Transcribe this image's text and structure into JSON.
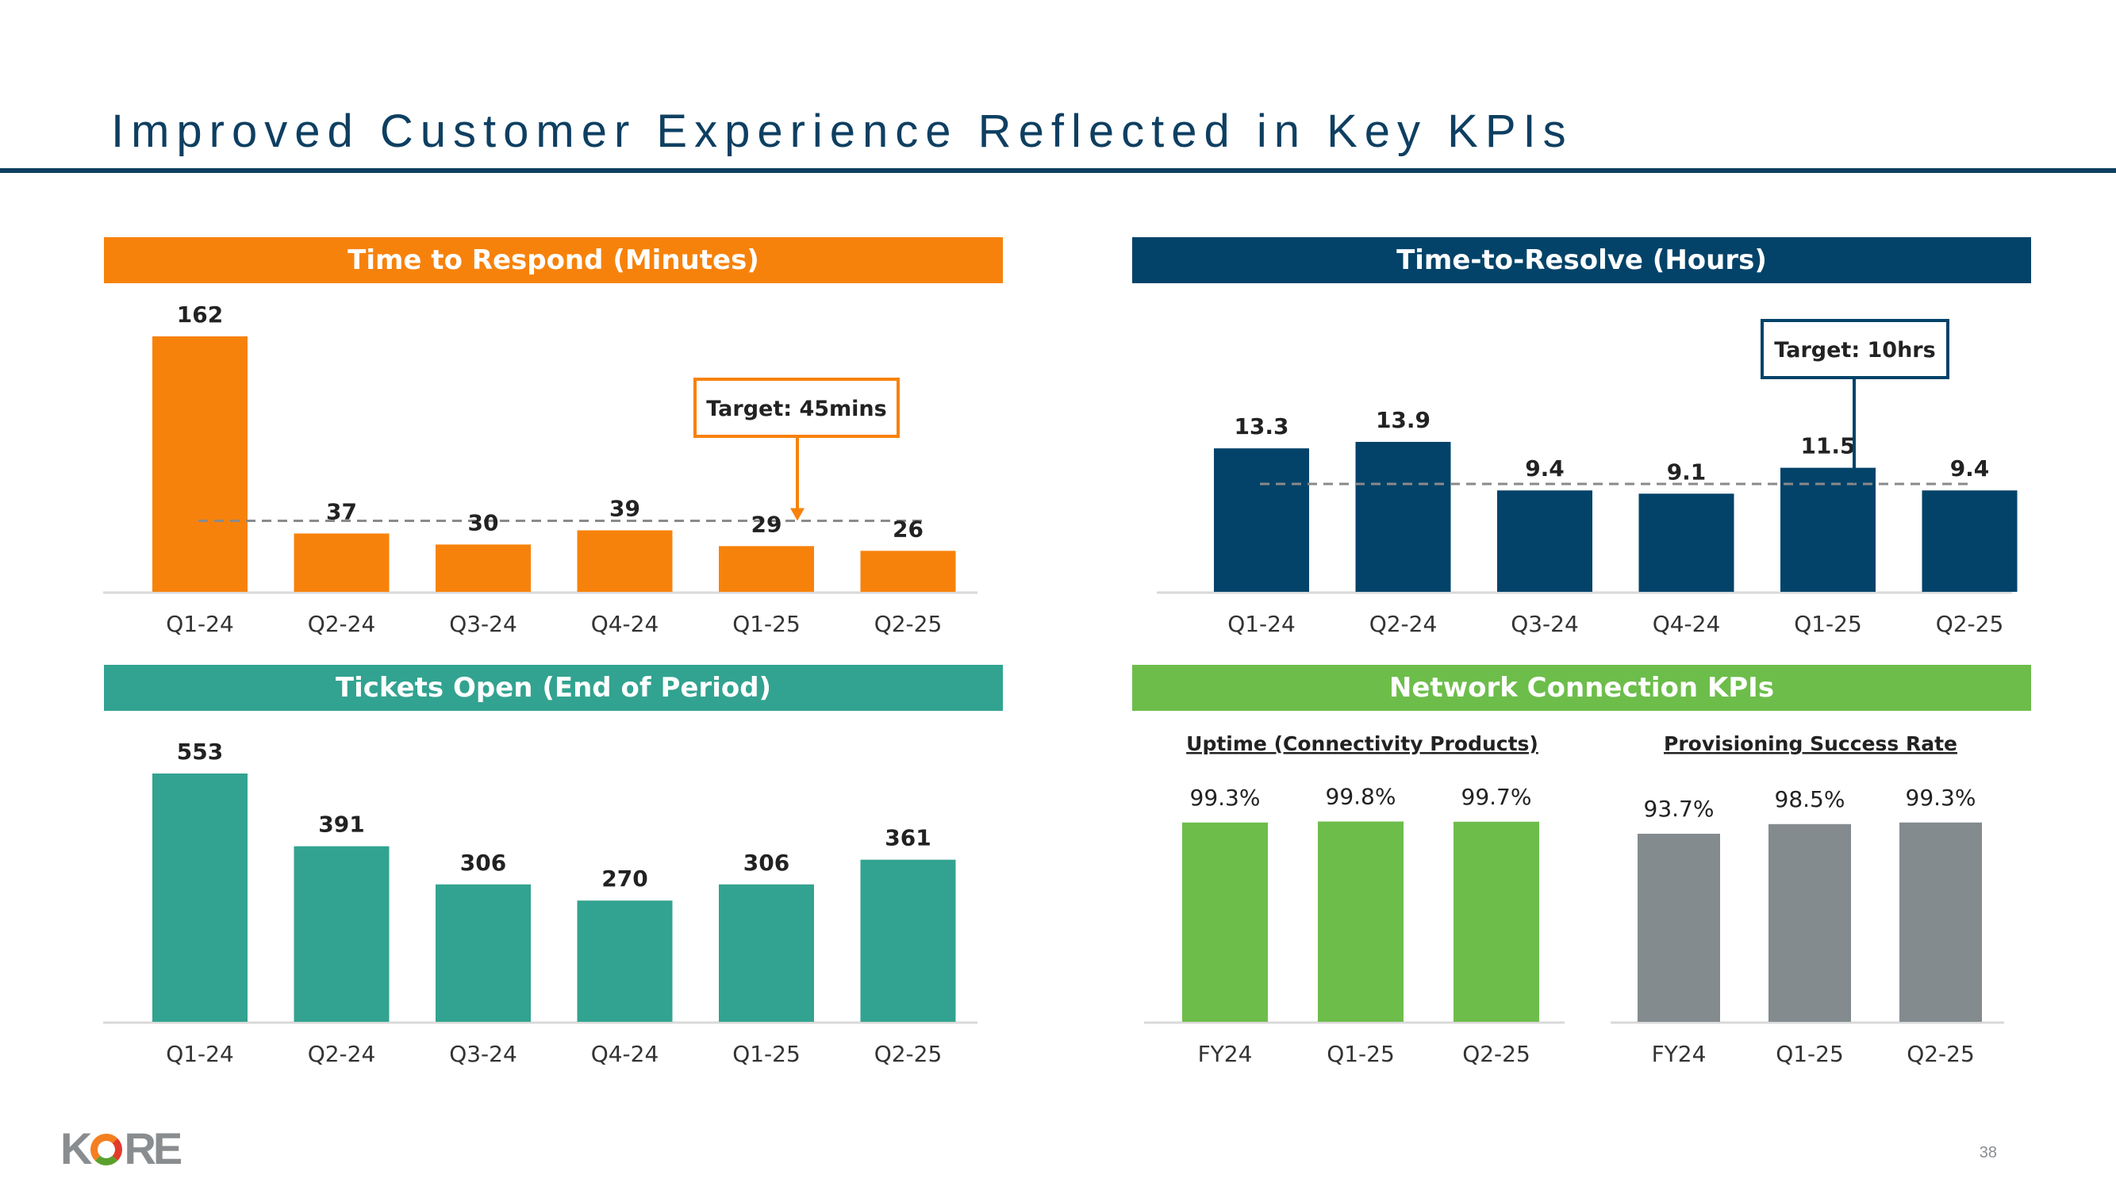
{
  "slide": {
    "title": "Improved Customer Experience Reflected in Key KPIs",
    "page_number": "38",
    "logo_text": "KORE",
    "colors": {
      "title": "#0e3f61",
      "orange": "#f7820b",
      "navy": "#034369",
      "teal": "#32a390",
      "green": "#6dbd4b",
      "gray": "#838b8e"
    }
  },
  "chart_data": [
    {
      "id": "time-to-respond",
      "type": "bar",
      "title": "Time to Respond (Minutes)",
      "categories": [
        "Q1-24",
        "Q2-24",
        "Q3-24",
        "Q4-24",
        "Q1-25",
        "Q2-25"
      ],
      "values": [
        162,
        37,
        30,
        39,
        29,
        26
      ],
      "data_labels": [
        "162",
        "37",
        "30",
        "39",
        "29",
        "26"
      ],
      "color": "#f7820b",
      "header_color": "#f7820b",
      "target": {
        "value": 45,
        "label": "Target: 45mins",
        "arrow_category": "Q1-25"
      },
      "ylim": [
        0,
        170
      ]
    },
    {
      "id": "time-to-resolve",
      "type": "bar",
      "title": "Time-to-Resolve (Hours)",
      "categories": [
        "Q1-24",
        "Q2-24",
        "Q3-24",
        "Q4-24",
        "Q1-25",
        "Q2-25"
      ],
      "values": [
        13.3,
        13.9,
        9.4,
        9.1,
        11.5,
        9.4
      ],
      "data_labels": [
        "13.3",
        "13.9",
        "9.4",
        "9.1",
        "11.5",
        "9.4"
      ],
      "color": "#034369",
      "header_color": "#034369",
      "target": {
        "value": 10,
        "label": "Target: 10hrs",
        "arrow_category": "Q1-25"
      },
      "ylim": [
        0,
        27
      ]
    },
    {
      "id": "tickets-open",
      "type": "bar",
      "title": "Tickets Open (End of Period)",
      "categories": [
        "Q1-24",
        "Q2-24",
        "Q3-24",
        "Q4-24",
        "Q1-25",
        "Q2-25"
      ],
      "values": [
        553,
        391,
        306,
        270,
        306,
        361
      ],
      "data_labels": [
        "553",
        "391",
        "306",
        "270",
        "306",
        "361"
      ],
      "color": "#32a390",
      "header_color": "#32a390",
      "ylim": [
        0,
        650
      ]
    },
    {
      "id": "network-connection-kpis",
      "type": "bar",
      "title": "Network Connection KPIs",
      "header_color": "#6dbd4b",
      "subcharts": [
        {
          "id": "uptime",
          "subtitle": "Uptime (Connectivity Products)",
          "categories": [
            "FY24",
            "Q1-25",
            "Q2-25"
          ],
          "values": [
            99.3,
            99.8,
            99.7
          ],
          "data_labels": [
            "99.3%",
            "99.8%",
            "99.7%"
          ],
          "color": "#6dbd4b",
          "ylim": [
            0,
            115
          ]
        },
        {
          "id": "provisioning",
          "subtitle": "Provisioning Success Rate",
          "categories": [
            "FY24",
            "Q1-25",
            "Q2-25"
          ],
          "values": [
            93.7,
            98.5,
            99.3
          ],
          "data_labels": [
            "93.7%",
            "98.5%",
            "99.3%"
          ],
          "color": "#838b8e",
          "ylim": [
            0,
            115
          ]
        }
      ]
    }
  ]
}
